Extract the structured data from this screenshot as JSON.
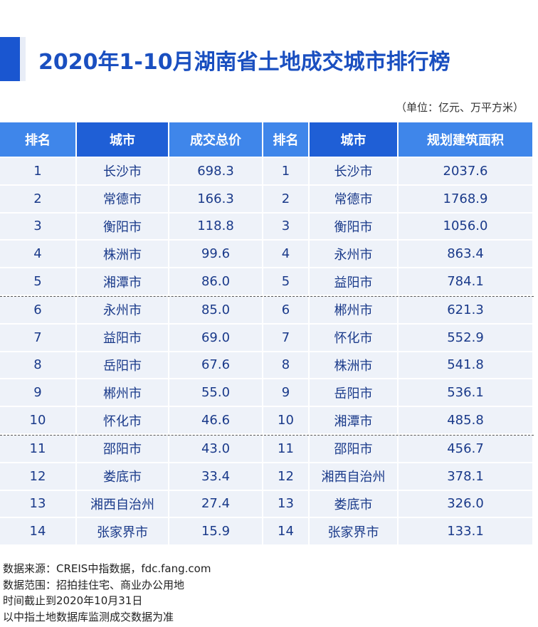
{
  "header": {
    "title": "2020年1-10月湖南省土地成交城市排行榜",
    "unit": "（单位：亿元、万平方米）"
  },
  "table": {
    "columns": [
      "排名",
      "城市",
      "成交总价",
      "排名",
      "城市",
      "规划建筑面积"
    ],
    "rows": [
      [
        "1",
        "长沙市",
        "698.3",
        "1",
        "长沙市",
        "2037.6"
      ],
      [
        "2",
        "常德市",
        "166.3",
        "2",
        "常德市",
        "1768.9"
      ],
      [
        "3",
        "衡阳市",
        "118.8",
        "3",
        "衡阳市",
        "1056.0"
      ],
      [
        "4",
        "株洲市",
        "99.6",
        "4",
        "永州市",
        "863.4"
      ],
      [
        "5",
        "湘潭市",
        "86.0",
        "5",
        "益阳市",
        "784.1"
      ],
      [
        "6",
        "永州市",
        "85.0",
        "6",
        "郴州市",
        "621.3"
      ],
      [
        "7",
        "益阳市",
        "69.0",
        "7",
        "怀化市",
        "552.9"
      ],
      [
        "8",
        "岳阳市",
        "67.6",
        "8",
        "株洲市",
        "541.8"
      ],
      [
        "9",
        "郴州市",
        "55.0",
        "9",
        "岳阳市",
        "536.1"
      ],
      [
        "10",
        "怀化市",
        "46.6",
        "10",
        "湘潭市",
        "485.8"
      ],
      [
        "11",
        "邵阳市",
        "43.0",
        "11",
        "邵阳市",
        "456.7"
      ],
      [
        "12",
        "娄底市",
        "33.4",
        "12",
        "湘西自治州",
        "378.1"
      ],
      [
        "13",
        "湘西自治州",
        "27.4",
        "13",
        "娄底市",
        "326.0"
      ],
      [
        "14",
        "张家界市",
        "15.9",
        "14",
        "张家界市",
        "133.1"
      ]
    ]
  },
  "notes": [
    "数据来源：CREIS中指数据，fdc.fang.com",
    "数据范围：招拍挂住宅、商业办公用地",
    "时间截止到2020年10月31日",
    "以中指土地数据库监测成交数据为准"
  ]
}
